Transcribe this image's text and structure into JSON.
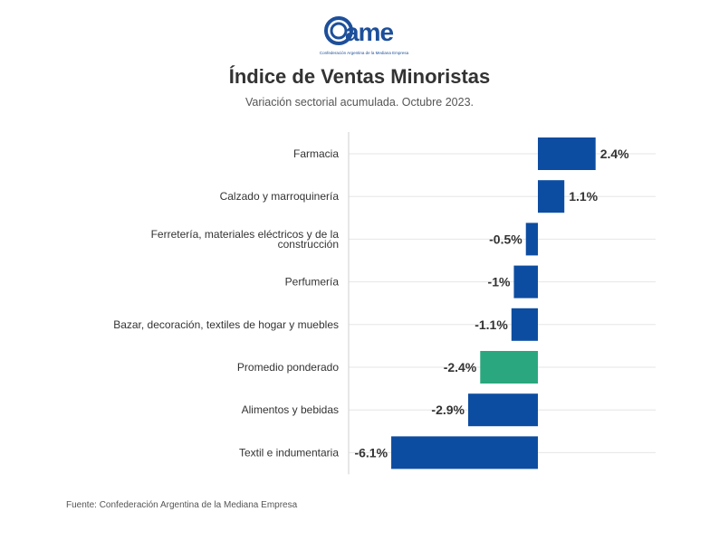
{
  "logo": {
    "wordmark": "came",
    "tagline": "Confederación Argentina de la Mediana Empresa"
  },
  "footer": "Fuente: Confederación Argentina de la Mediana Empresa",
  "colors": {
    "bar": "#0d4da1",
    "highlight": "#2aa77e",
    "grid": "#e6e6e6",
    "axis": "#cfcfcf"
  },
  "chart_data": {
    "type": "bar",
    "orientation": "horizontal",
    "title": "Índice de Ventas Minoristas",
    "subtitle": "Variación sectorial acumulada. Octubre 2023.",
    "categories": [
      "Farmacia",
      "Calzado y marroquinería",
      "Ferretería, materiales eléctricos y de la construcción",
      "Perfumería",
      "Bazar, decoración, textiles de hogar y muebles",
      "Promedio ponderado",
      "Alimentos y bebidas",
      "Textil e indumentaria"
    ],
    "category_lines": [
      [
        "Farmacia"
      ],
      [
        "Calzado y marroquinería"
      ],
      [
        "Ferretería, materiales eléctricos y de la",
        "construcción"
      ],
      [
        "Perfumería"
      ],
      [
        "Bazar, decoración, textiles de hogar y muebles"
      ],
      [
        "Promedio ponderado"
      ],
      [
        "Alimentos y bebidas"
      ],
      [
        "Textil e indumentaria"
      ]
    ],
    "values": [
      2.4,
      1.1,
      -0.5,
      -1,
      -1.1,
      -2.4,
      -2.9,
      -6.1
    ],
    "data_labels": [
      "2.4%",
      "1.1%",
      "-0.5%",
      "-1%",
      "-1.1%",
      "-2.4%",
      "-2.9%",
      "-6.1%"
    ],
    "highlight": "Promedio ponderado",
    "xlim": [
      -6.1,
      2.4
    ],
    "grid": true,
    "legend": "none"
  }
}
